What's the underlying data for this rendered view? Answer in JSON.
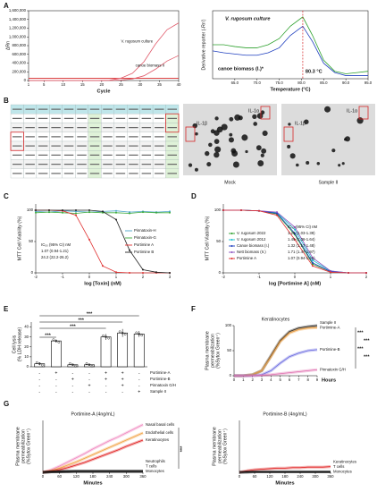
{
  "panel_labels": [
    "A",
    "B",
    "C",
    "D",
    "E",
    "F",
    "G"
  ],
  "blots": [
    {
      "caption": "Mock",
      "labels": [
        "IL-1α",
        "IL-1β"
      ]
    },
    {
      "caption": "Sample II",
      "labels": [
        "IL-1α",
        "IL-1β"
      ]
    }
  ],
  "chart_data": [
    {
      "type": "line",
      "xlabel": "Cycle",
      "ylabel": "ΔRn",
      "x": [
        1,
        4,
        7,
        10,
        13,
        16,
        19,
        22,
        25,
        28,
        31,
        34,
        37,
        40
      ],
      "xlim": [
        1,
        40
      ],
      "xticks": [
        1,
        5,
        10,
        15,
        20,
        25,
        30,
        35,
        40
      ],
      "ylim": [
        0,
        1600000
      ],
      "yticks": [
        0,
        {
          "value": 200000,
          "label": "200,000"
        },
        {
          "value": 400000,
          "label": "400,000"
        },
        {
          "value": 600000,
          "label": "600,000"
        },
        {
          "value": 800000,
          "label": "800,000"
        },
        {
          "value": 1000000,
          "label": "1,000,000"
        },
        {
          "value": 1200000,
          "label": "1,200,000"
        },
        {
          "value": 1400000,
          "label": "1,400,000"
        },
        {
          "value": 1600000,
          "label": "1,600,000"
        }
      ],
      "threshold": 50000,
      "threshold_color": "#d62728",
      "series": [
        {
          "name": "V. rugosum culture",
          "color": "#e05a6a",
          "values": [
            0,
            0,
            0,
            0,
            0,
            0,
            1000,
            8000,
            55000,
            167000,
            433000,
            838000,
            1166000,
            1321000
          ]
        },
        {
          "name": "canoe biomass II",
          "color": "#e05a6a",
          "values": [
            0,
            0,
            0,
            0,
            0,
            0,
            0,
            2000,
            12000,
            37000,
            109000,
            261000,
            448000,
            573000
          ]
        }
      ]
    },
    {
      "type": "line",
      "xlabel": "Temperature (°C)",
      "ylabel": "Derivative reporter (-Rn')",
      "x": [
        60,
        62.5,
        65,
        67.5,
        70,
        72.5,
        75,
        77.5,
        80.3,
        82.5,
        85,
        87.5,
        90,
        92.5,
        95
      ],
      "xlim": [
        60,
        95
      ],
      "xticks": [
        {
          "value": 65,
          "label": "65.0"
        },
        {
          "value": 70,
          "label": "70.0"
        },
        {
          "value": 75,
          "label": "75.0"
        },
        {
          "value": 80,
          "label": "80.0"
        },
        {
          "value": 85,
          "label": "85.0"
        },
        {
          "value": 90,
          "label": "90.0"
        },
        {
          "value": 95,
          "label": "95.0"
        }
      ],
      "ylim": [
        0,
        1.1
      ],
      "peak": {
        "x": 80.3,
        "label": "80.3 °C",
        "color": "#d62728"
      },
      "series": [
        {
          "name": "V. rugosum culture",
          "color": "#2ca02c",
          "values": [
            0.55,
            0.55,
            0.52,
            0.5,
            0.5,
            0.55,
            0.65,
            0.85,
            1.0,
            0.7,
            0.3,
            0.12,
            0.08,
            0.1,
            0.12
          ]
        },
        {
          "name": "canoe biomass (I.)*",
          "color": "#1f3fbf",
          "values": [
            0.45,
            0.42,
            0.4,
            0.38,
            0.38,
            0.42,
            0.5,
            0.7,
            0.85,
            0.6,
            0.25,
            0.1,
            0.05,
            0.05,
            0.05
          ]
        }
      ]
    },
    {
      "type": "line",
      "markers": true,
      "legend": true,
      "xlabel": "log [Toxin] (nM)",
      "ylabel": "MTT Cell Viability (%)",
      "x": [
        -2,
        -1.5,
        -1,
        -0.5,
        0,
        0.5,
        1,
        1.5,
        2,
        2.5,
        3
      ],
      "xlim": [
        -2,
        3
      ],
      "xticks": [
        -2,
        -1,
        0,
        1,
        2,
        3
      ],
      "ylim": [
        0,
        110
      ],
      "yticks": [
        0,
        50,
        100
      ],
      "annotations": [
        "IC₅₀ (95% CI) nM",
        "1.07 (0.94-1.21)",
        "24.2 (22.2-26.2)"
      ],
      "series": [
        {
          "name": "Pinnatoxin-H",
          "color": "#4aa3c8",
          "values": [
            98,
            97,
            99,
            98,
            97,
            98,
            99,
            97,
            98,
            97,
            98
          ]
        },
        {
          "name": "Pinnatoxin-G",
          "color": "#3caa3c",
          "values": [
            96,
            97,
            96,
            95,
            97,
            96,
            96,
            95,
            97,
            96,
            96
          ]
        },
        {
          "name": "Portimine A",
          "color": "#e03030",
          "values": [
            100,
            100,
            99,
            92,
            53,
            11,
            1,
            0,
            0,
            0,
            0
          ]
        },
        {
          "name": "Portimine B",
          "color": "#222222",
          "values": [
            100,
            100,
            100,
            100,
            100,
            98,
            85,
            36,
            5,
            1,
            0
          ]
        }
      ]
    },
    {
      "type": "line",
      "markers": true,
      "legend": true,
      "xlabel": "log [Portimine A] (nM)",
      "ylabel": "MTT Cell Viability (%)",
      "x": [
        -2,
        -1.5,
        -1,
        -0.5,
        0,
        0.5,
        1,
        1.5,
        2
      ],
      "xlim": [
        -2,
        2
      ],
      "xticks": [
        -2,
        -1,
        0,
        1,
        2
      ],
      "ylim": [
        0,
        110
      ],
      "yticks": [
        0,
        50,
        100
      ],
      "ic50_header": "IC₅₀ (95% CI) nM",
      "series": [
        {
          "name": "V. rugosum 2022",
          "ic50_label": "1.25 (1.03-1.39)",
          "color": "#2ca02c",
          "values": [
            100,
            100,
            99,
            94,
            61,
            14,
            2,
            0,
            0
          ]
        },
        {
          "name": "V. rugosum 2012",
          "ic50_label": "1.49 (1.36-1.64)",
          "color": "#17becf",
          "values": [
            100,
            100,
            99,
            96,
            69,
            20,
            3,
            0,
            0
          ]
        },
        {
          "name": "Canoe biomass (I.)",
          "ic50_label": "1.32 (1.17-1.48)",
          "color": "#1f3fbf",
          "values": [
            100,
            100,
            99,
            95,
            63,
            16,
            2,
            0,
            0
          ]
        },
        {
          "name": "Nett biomass (II.)",
          "ic50_label": "1.71 (1.47-1.97)",
          "color": "#8a4fbf",
          "values": [
            100,
            100,
            99,
            97,
            73,
            24,
            3,
            0,
            0
          ]
        },
        {
          "name": "Portimine A",
          "ic50_label": "1.07 (0.94-1.21)",
          "color": "#e03030",
          "values": [
            100,
            100,
            99,
            92,
            53,
            11,
            1,
            0,
            0
          ]
        }
      ]
    },
    {
      "type": "bar",
      "ylabel": [
        "Cell lysis",
        "(% LDH release)"
      ],
      "values": [
        3,
        26,
        2,
        2,
        30,
        34,
        33
      ],
      "errors": [
        1.5,
        1.5,
        1,
        1,
        3,
        4,
        3
      ],
      "ylim": [
        0,
        45
      ],
      "yticks": [
        0,
        10,
        20,
        30,
        40
      ],
      "color": "#ffffff",
      "edge_color": "#000000",
      "conditions": [
        {
          "name": "Portimine-A",
          "signs": [
            "-",
            "+",
            "-",
            "-",
            "+",
            "+",
            "-"
          ]
        },
        {
          "name": "Portimine-B",
          "signs": [
            "-",
            "-",
            "+",
            "-",
            "+",
            "+",
            "-"
          ]
        },
        {
          "name": "Pinnatoxin G/H",
          "signs": [
            "-",
            "-",
            "-",
            "+",
            "-",
            "+",
            "-"
          ]
        },
        {
          "name": "Sample II",
          "signs": [
            "-",
            "-",
            "-",
            "-",
            "-",
            "-",
            "+"
          ]
        }
      ],
      "significance": [
        {
          "label": "***",
          "pair": [
            0,
            1
          ]
        },
        {
          "label": "***",
          "pair": [
            0,
            4
          ]
        },
        {
          "label": "***",
          "pair": [
            0,
            5
          ]
        },
        {
          "label": "***",
          "pair": [
            0,
            6
          ]
        }
      ]
    },
    {
      "type": "line",
      "band": true,
      "labels": "end",
      "title": "Keratinocytes",
      "xlabel": "Hours",
      "ylabel": [
        "Plasma membrane",
        "permeabilization",
        "(%Sytox Green⁺)"
      ],
      "x": [
        0,
        1,
        2,
        3,
        4,
        5,
        6,
        7,
        8,
        9
      ],
      "xlim": [
        0,
        9
      ],
      "xticks": [
        0,
        1,
        2,
        3,
        4,
        5,
        6,
        7,
        8,
        9
      ],
      "ylim": [
        0,
        100
      ],
      "yticks": [
        0,
        50,
        100
      ],
      "significance": [
        "***",
        "***",
        "***",
        "***"
      ],
      "series": [
        {
          "name": "Sample II",
          "color": "#111111",
          "values": [
            0,
            0,
            2,
            10,
            40,
            70,
            88,
            95,
            98,
            100
          ]
        },
        {
          "name": "Portimine-A",
          "color": "#f0a040",
          "values": [
            0,
            0,
            2,
            10,
            38,
            68,
            85,
            92,
            95,
            96
          ]
        },
        {
          "name": "Portimine-B",
          "color": "#6a6ae0",
          "values": [
            0,
            0,
            0,
            2,
            10,
            25,
            38,
            45,
            50,
            52
          ]
        },
        {
          "name": "Pinnatoxin G/H",
          "color": "#e070b0",
          "values": [
            0,
            0,
            0,
            1,
            2,
            4,
            6,
            8,
            10,
            12
          ]
        }
      ]
    },
    {
      "type": "line",
      "band": true,
      "labels": "end",
      "title": "Portimine-A (4ng/mL)",
      "xlabel": "Minutes",
      "ylabel": [
        "Plasma membrane",
        "permeabilization",
        "(%Sytox Green⁺)"
      ],
      "x": [
        0,
        30,
        60,
        90,
        120,
        150,
        180,
        210,
        240,
        270,
        300,
        330,
        360
      ],
      "xlim": [
        0,
        360
      ],
      "xticks": [
        0,
        60,
        120,
        180,
        240,
        300,
        360
      ],
      "ylim": [
        0,
        100
      ],
      "significance": [
        "***"
      ],
      "series": [
        {
          "name": "Nasal basal cells",
          "color": "#f08ac0",
          "values": [
            0,
            5,
            12,
            20,
            28,
            36,
            45,
            53,
            61,
            68,
            76,
            84,
            92
          ]
        },
        {
          "name": "Endothelial cells",
          "color": "#f0a040",
          "values": [
            0,
            3,
            8,
            14,
            20,
            27,
            34,
            41,
            48,
            55,
            62,
            69,
            76
          ]
        },
        {
          "name": "Keratinocytes",
          "color": "#e02020",
          "values": [
            0,
            2,
            5,
            9,
            14,
            19,
            25,
            31,
            37,
            43,
            50,
            56,
            62
          ]
        },
        {
          "name": "Monocytes",
          "color": "#111111",
          "values": [
            0,
            1,
            2,
            2,
            2,
            2,
            2,
            2,
            2,
            2,
            2,
            2,
            2
          ]
        },
        {
          "name": "T cells",
          "color": "#111111",
          "values": [
            0,
            1,
            1,
            2,
            2,
            2,
            2,
            2,
            2,
            2,
            2,
            2,
            2
          ]
        },
        {
          "name": "Neutrophils",
          "color": "#111111",
          "values": [
            0,
            1,
            1,
            1,
            2,
            2,
            2,
            2,
            2,
            2,
            2,
            2,
            2
          ]
        }
      ]
    },
    {
      "type": "line",
      "band": true,
      "labels": "end",
      "title": "Portimine-B (4ng/mL)",
      "xlabel": "Minutes",
      "ylabel": [
        "Plasma membrane",
        "permeabilization",
        "(%Sytox Green⁺)"
      ],
      "x": [
        0,
        30,
        60,
        90,
        120,
        150,
        180,
        210,
        240,
        270,
        300,
        330,
        360
      ],
      "xlim": [
        0,
        360
      ],
      "xticks": [
        0,
        60,
        120,
        180,
        240,
        300,
        360
      ],
      "ylim": [
        0,
        100
      ],
      "series": [
        {
          "name": "Keratinocytes",
          "color": "#e02020",
          "values": [
            0,
            3,
            5,
            6,
            7,
            8,
            8,
            9,
            9,
            10,
            10,
            10,
            11
          ]
        },
        {
          "name": "Monocytes",
          "color": "#111111",
          "values": [
            0,
            1,
            1,
            1,
            1,
            1,
            1,
            1,
            1,
            1,
            1,
            1,
            1
          ]
        },
        {
          "name": "T cells",
          "color": "#111111",
          "values": [
            0,
            0,
            1,
            1,
            1,
            1,
            1,
            1,
            1,
            1,
            1,
            1,
            1
          ]
        }
      ]
    }
  ]
}
